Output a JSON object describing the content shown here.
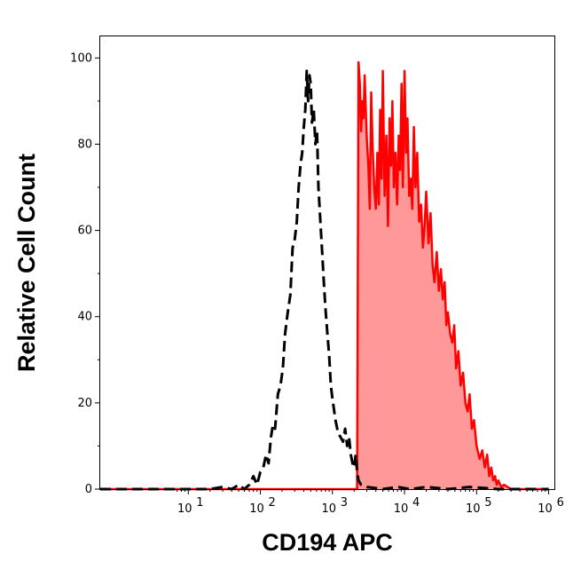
{
  "chart_data": {
    "type": "area",
    "xlabel": "CD194 APC",
    "ylabel": "Relative Cell Count",
    "x_scale": "log",
    "xlim": [
      0.6,
      1200000
    ],
    "ylim": [
      0,
      105
    ],
    "x_ticks": [
      {
        "value": 10,
        "base": "10",
        "exp": "1"
      },
      {
        "value": 100,
        "base": "10",
        "exp": "2"
      },
      {
        "value": 1000,
        "base": "10",
        "exp": "3"
      },
      {
        "value": 10000,
        "base": "10",
        "exp": "4"
      },
      {
        "value": 100000,
        "base": "10",
        "exp": "5"
      },
      {
        "value": 1000000,
        "base": "10",
        "exp": "6"
      }
    ],
    "y_ticks": [
      0,
      20,
      40,
      60,
      80,
      100
    ],
    "grid": false,
    "legend": "none",
    "series": [
      {
        "style": "dashed",
        "color": "#000000",
        "fill": "none",
        "x": [
          0.6,
          20,
          30,
          40,
          50,
          60,
          70,
          80,
          90,
          100,
          110,
          120,
          130,
          140,
          150,
          160,
          175,
          190,
          205,
          220,
          240,
          260,
          280,
          300,
          320,
          340,
          360,
          380,
          400,
          420,
          440,
          460,
          480,
          500,
          520,
          550,
          580,
          610,
          640,
          680,
          720,
          760,
          800,
          850,
          900,
          950,
          1000,
          1100,
          1200,
          1300,
          1400,
          1500,
          1600,
          1700,
          1800,
          1900,
          2000,
          2100,
          2200,
          2300,
          2500,
          3000,
          5000,
          8000,
          12000,
          20000,
          40000,
          80000,
          200000,
          500000,
          1000000
        ],
        "y": [
          0,
          0,
          0.5,
          0,
          1,
          0,
          1,
          3,
          1,
          4,
          5,
          8,
          6,
          12,
          15,
          14,
          22,
          24,
          28,
          36,
          41,
          45,
          56,
          58,
          62,
          70,
          75,
          78,
          84,
          88,
          97,
          90,
          96,
          94,
          85,
          88,
          80,
          83,
          70,
          62,
          55,
          48,
          42,
          36,
          31,
          24,
          21,
          16,
          13,
          12,
          11,
          14,
          10,
          12,
          8,
          6,
          5,
          8,
          4,
          2,
          1,
          0.5,
          0,
          0.5,
          0,
          0.5,
          0,
          0.5,
          0,
          0,
          0
        ]
      },
      {
        "style": "solid",
        "color": "#ff0000",
        "fill": "#ff9999",
        "x": [
          0.6,
          2200,
          2300,
          2400,
          2500,
          2600,
          2700,
          2800,
          2900,
          3000,
          3150,
          3300,
          3450,
          3600,
          3800,
          4000,
          4200,
          4400,
          4600,
          4800,
          5000,
          5300,
          5600,
          5900,
          6200,
          6500,
          6800,
          7100,
          7500,
          7900,
          8300,
          8700,
          9100,
          9500,
          10000,
          10500,
          11000,
          11600,
          12200,
          12800,
          13500,
          14200,
          15000,
          16000,
          17000,
          18000,
          19000,
          20000,
          21500,
          23000,
          24500,
          26000,
          28000,
          30000,
          32000,
          34000,
          36000,
          38000,
          40000,
          43000,
          46000,
          49000,
          52000,
          56000,
          60000,
          65000,
          70000,
          75000,
          80000,
          86000,
          92000,
          100000,
          110000,
          120000,
          130000,
          140000,
          150000,
          160000,
          170000,
          180000,
          190000,
          200000,
          220000,
          240000,
          300000,
          1000000
        ],
        "y": [
          0,
          0,
          99,
          94,
          83,
          90,
          86,
          96,
          88,
          81,
          75,
          65,
          92,
          80,
          70,
          65,
          78,
          66,
          88,
          72,
          97,
          68,
          82,
          61,
          86,
          75,
          90,
          70,
          78,
          66,
          82,
          74,
          94,
          70,
          97,
          78,
          86,
          68,
          72,
          65,
          84,
          70,
          78,
          62,
          66,
          56,
          61,
          69,
          57,
          64,
          52,
          48,
          55,
          46,
          51,
          44,
          48,
          38,
          41,
          36,
          34,
          38,
          28,
          32,
          24,
          27,
          20,
          18,
          22,
          14,
          16,
          10,
          7,
          9,
          5,
          8,
          3,
          5,
          2,
          3,
          1,
          2,
          0.5,
          1,
          0,
          0
        ]
      }
    ]
  }
}
